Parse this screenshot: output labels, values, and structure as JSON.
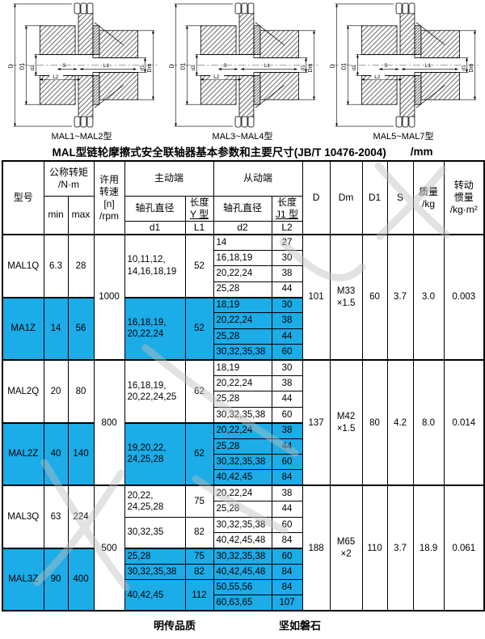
{
  "title": "MAL型链轮摩擦式安全联轴器基本参数和主要尺寸(JB/T 10476-2004)",
  "unit": "/mm",
  "colors": {
    "highlight": "#1CACE8"
  },
  "drawings": [
    {
      "caption": "MAL1~MAL2型"
    },
    {
      "caption": "MAL3~MAL4型"
    },
    {
      "caption": "MAL5~MAL7型"
    }
  ],
  "drawing_labels": {
    "D": "D",
    "D1": "D1",
    "d2": "d2",
    "d1": "d1",
    "Dm": "Dm",
    "S": "S",
    "L1": "L1",
    "L2": "L2"
  },
  "header": {
    "model": "型号",
    "torque": "公称转矩\n/N·m",
    "min": "min",
    "max": "max",
    "speed": "许用\n转速\n[n]\n/rpm",
    "driving": "主动端",
    "driven": "从动端",
    "bore_dia": "轴孔直径",
    "len": "长度",
    "y_type": "Y 型",
    "j1_type": "J1 型",
    "d1": "d1",
    "L1": "L1",
    "d2": "d2",
    "L2": "L2",
    "D": "D",
    "Dm": "Dm",
    "D1": "D1",
    "S": "S",
    "mass": "质量\n/kg",
    "inertia": "转动\n惯量\n/kg·m²"
  },
  "table": {
    "groups": [
      {
        "speed": "1000",
        "D": "101",
        "Dm": "M33\n×1.5",
        "D1": "60",
        "S": "3.7",
        "mass": "3.0",
        "inertia": "0.003",
        "models": [
          {
            "name": "MAL1Q",
            "min": "6.3",
            "max": "28",
            "hl": false,
            "d1": [
              {
                "d": "10,11,12,\n14,16,18,19",
                "l": "52",
                "span": 4
              }
            ],
            "rows": [
              [
                "14",
                "27"
              ],
              [
                "16,18,19",
                "30"
              ],
              [
                "20,22,24",
                "38"
              ],
              [
                "25,28",
                "44"
              ]
            ]
          },
          {
            "name": "MA1Z",
            "min": "14",
            "max": "56",
            "hl": true,
            "d1": [
              {
                "d": "16,18,19,\n20,22,24",
                "l": "52",
                "span": 4
              }
            ],
            "rows": [
              [
                "18,19",
                "30"
              ],
              [
                "20,22,24",
                "38"
              ],
              [
                "25,28",
                "44"
              ],
              [
                "30,32,35,38",
                "60"
              ]
            ]
          }
        ]
      },
      {
        "speed": "800",
        "D": "137",
        "Dm": "M42\n×1.5",
        "D1": "80",
        "S": "4.2",
        "mass": "8.0",
        "inertia": "0.014",
        "models": [
          {
            "name": "MAL2Q",
            "min": "20",
            "max": "80",
            "hl": false,
            "d1": [
              {
                "d": "16,18,19,\n20,22,24,25",
                "l": "62",
                "span": 4
              }
            ],
            "rows": [
              [
                "18,19",
                "30"
              ],
              [
                "20,22,24",
                "38"
              ],
              [
                "25,28",
                "44"
              ],
              [
                "30,32,35,38",
                "60"
              ]
            ]
          },
          {
            "name": "MAL2Z",
            "min": "40",
            "max": "140",
            "hl": true,
            "d1": [
              {
                "d": "19,20,22,\n24,25,28",
                "l": "62",
                "span": 4
              }
            ],
            "rows": [
              [
                "20,22,24",
                "38"
              ],
              [
                "25,28",
                "44"
              ],
              [
                "30,32,35,38",
                "60"
              ],
              [
                "40,42,45",
                "84"
              ]
            ]
          }
        ]
      },
      {
        "speed": "500",
        "D": "188",
        "Dm": "M65\n×2",
        "D1": "110",
        "S": "3.7",
        "mass": "18.9",
        "inertia": "0.061",
        "models": [
          {
            "name": "MAL3Q",
            "min": "63",
            "max": "224",
            "hl": false,
            "d1": [
              {
                "d": "20,22,\n24,25,28",
                "l": "75",
                "span": 2
              },
              {
                "d": "30,32,35",
                "l": "82",
                "span": 2
              }
            ],
            "rows": [
              [
                "20,22,24",
                "38"
              ],
              [
                "25,28",
                "44"
              ],
              [
                "30,32,35,38",
                "60"
              ],
              [
                "40,42,45,48",
                "84"
              ]
            ]
          },
          {
            "name": "MAL3Z",
            "min": "90",
            "max": "400",
            "hl": true,
            "d1": [
              {
                "d": "25,28",
                "l": "75",
                "span": 1
              },
              {
                "d": "30,32,35,38",
                "l": "82",
                "span": 1
              },
              {
                "d": "40,42,45",
                "l": "112",
                "span": 2
              }
            ],
            "rows": [
              [
                "30,32,35,38",
                "60"
              ],
              [
                "40,42,45,48",
                "84"
              ],
              [
                "50,55,56",
                "84"
              ],
              [
                "60,63,65",
                "107"
              ]
            ]
          }
        ]
      }
    ]
  },
  "footer": {
    "left": "明传品质",
    "right": "坚如磐石"
  }
}
